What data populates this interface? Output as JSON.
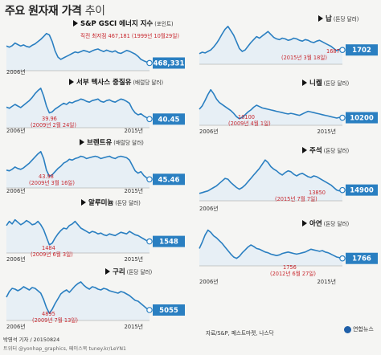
{
  "header": {
    "title": "주요 원자재 가격",
    "title_suffix": "추이"
  },
  "colors": {
    "line": "#2a7fc1",
    "fill": "#dbe9f6",
    "accent": "#c8282f",
    "value_box": "#2a7fc1"
  },
  "source": "자료/S&P, 페스트마켓, 나스닥",
  "credit": "박영석 기자 / 20150824",
  "credit2": "트위터 @yonhap_graphics, 페이스북 tuney.kr/LeYN1",
  "logo": "연합뉴스",
  "chart_data": [
    {
      "type": "line",
      "title": "S&P GSCI 에너지 지수",
      "unit": "(포인트)",
      "start_label": "2006년",
      "end_label": "",
      "current_value": "468,331",
      "annotations": [
        {
          "text": "직전 최저점  467,181 (1999년 10월29일)",
          "color": "red"
        }
      ],
      "values": [
        58,
        55,
        59,
        66,
        62,
        58,
        61,
        57,
        55,
        60,
        64,
        70,
        76,
        84,
        92,
        88,
        70,
        45,
        28,
        22,
        26,
        30,
        34,
        38,
        42,
        40,
        43,
        46,
        44,
        41,
        45,
        48,
        50,
        46,
        43,
        47,
        44,
        42,
        45,
        40,
        38,
        42,
        46,
        44,
        40,
        36,
        30,
        22,
        18,
        15,
        12
      ]
    },
    {
      "type": "line",
      "title": "서부 텍사스 중질유",
      "unit": "(배럴당 달러)",
      "start_label": "2006년",
      "end_label": "2015년",
      "current_value": "40.45",
      "annotations": [
        {
          "text": "39.96",
          "color": "red"
        },
        {
          "text": "(2009년 2월 24일)",
          "color": "red"
        }
      ],
      "values": [
        45,
        42,
        47,
        52,
        48,
        44,
        50,
        56,
        62,
        70,
        80,
        88,
        94,
        74,
        48,
        30,
        33,
        40,
        45,
        50,
        55,
        52,
        58,
        56,
        60,
        62,
        66,
        64,
        60,
        58,
        62,
        64,
        66,
        60,
        58,
        62,
        64,
        60,
        58,
        62,
        66,
        64,
        60,
        55,
        40,
        30,
        25,
        28,
        22,
        18,
        14
      ]
    },
    {
      "type": "line",
      "title": "브렌트유",
      "unit": "(배럴당 달러)",
      "start_label": "2006년",
      "end_label": "2015년",
      "current_value": "45.46",
      "annotations": [
        {
          "text": "43.98",
          "color": "red"
        },
        {
          "text": "(2009년 3월 16일)",
          "color": "red"
        }
      ],
      "values": [
        38,
        36,
        40,
        46,
        42,
        40,
        44,
        50,
        56,
        64,
        72,
        80,
        86,
        68,
        38,
        22,
        26,
        34,
        42,
        48,
        56,
        60,
        66,
        64,
        68,
        70,
        74,
        72,
        68,
        70,
        72,
        74,
        72,
        68,
        70,
        72,
        74,
        70,
        68,
        72,
        74,
        72,
        70,
        64,
        50,
        36,
        30,
        34,
        24,
        18,
        14
      ]
    },
    {
      "type": "line",
      "title": "알루미늄",
      "unit": "(톤당 달러)",
      "start_label": "2006년",
      "end_label": "2015년",
      "current_value": "1548",
      "annotations": [
        {
          "text": "1484",
          "color": "red"
        },
        {
          "text": "(2009년 6월 3일)",
          "color": "red"
        }
      ],
      "values": [
        58,
        68,
        62,
        72,
        66,
        60,
        64,
        70,
        66,
        60,
        62,
        68,
        60,
        48,
        30,
        12,
        16,
        28,
        38,
        46,
        52,
        50,
        58,
        62,
        68,
        60,
        52,
        48,
        44,
        40,
        44,
        42,
        38,
        40,
        36,
        34,
        38,
        36,
        34,
        38,
        42,
        40,
        38,
        44,
        40,
        36,
        34,
        30,
        26,
        22,
        20
      ]
    },
    {
      "type": "line",
      "title": "구리",
      "unit": "(톤당 달러)",
      "start_label": "2006년",
      "end_label": "2015년",
      "current_value": "5055",
      "annotations": [
        {
          "text": "4895",
          "color": "red"
        },
        {
          "text": "(2009년 7월 13일)",
          "color": "red"
        }
      ],
      "values": [
        50,
        64,
        72,
        70,
        66,
        70,
        76,
        72,
        68,
        74,
        72,
        66,
        60,
        44,
        24,
        10,
        20,
        34,
        46,
        58,
        64,
        68,
        62,
        70,
        78,
        84,
        88,
        80,
        74,
        70,
        76,
        74,
        70,
        68,
        72,
        70,
        66,
        64,
        62,
        60,
        64,
        62,
        58,
        54,
        48,
        42,
        40,
        34,
        28,
        22,
        18
      ]
    },
    {
      "type": "line",
      "title": "납",
      "unit": "(톤당 달러)",
      "start_label": "",
      "end_label": "",
      "current_value": "1702",
      "annotations": [
        {
          "text": "1687",
          "color": "red"
        },
        {
          "text": "(2015년 3월 18일)",
          "color": "red"
        }
      ],
      "values": [
        20,
        24,
        22,
        26,
        30,
        38,
        48,
        60,
        74,
        86,
        94,
        82,
        70,
        52,
        34,
        26,
        30,
        40,
        50,
        58,
        66,
        62,
        68,
        74,
        80,
        72,
        64,
        60,
        58,
        62,
        60,
        56,
        58,
        62,
        60,
        56,
        54,
        58,
        56,
        52,
        50,
        54,
        56,
        52,
        48,
        44,
        40,
        34,
        28,
        32,
        30
      ]
    },
    {
      "type": "line",
      "title": "니켈",
      "unit": "(톤당 달러)",
      "start_label": "2006년",
      "end_label": "2015년",
      "current_value": "10200",
      "annotations": [
        {
          "text": "10100",
          "color": "red"
        },
        {
          "text": "(2009년 4월 1일)",
          "color": "red"
        }
      ],
      "values": [
        38,
        48,
        64,
        82,
        96,
        84,
        68,
        58,
        52,
        46,
        40,
        34,
        26,
        16,
        10,
        14,
        22,
        30,
        36,
        44,
        50,
        46,
        42,
        40,
        38,
        36,
        34,
        32,
        30,
        28,
        26,
        24,
        26,
        24,
        22,
        20,
        24,
        28,
        32,
        30,
        28,
        26,
        24,
        22,
        20,
        18,
        16,
        14,
        12,
        14,
        13
      ]
    },
    {
      "type": "line",
      "title": "주석",
      "unit": "(톤당 달러)",
      "start_label": "2006년",
      "end_label": "",
      "current_value": "14900",
      "annotations": [
        {
          "text": "13850",
          "color": "red"
        },
        {
          "text": "(2015년 7월 7일)",
          "color": "red"
        }
      ],
      "values": [
        10,
        12,
        14,
        16,
        20,
        24,
        28,
        34,
        40,
        46,
        44,
        36,
        30,
        24,
        20,
        24,
        30,
        38,
        46,
        54,
        62,
        70,
        80,
        90,
        84,
        74,
        68,
        64,
        58,
        54,
        60,
        64,
        62,
        56,
        52,
        56,
        58,
        54,
        50,
        48,
        52,
        50,
        46,
        42,
        38,
        34,
        30,
        24,
        18,
        16,
        18
      ]
    },
    {
      "type": "line",
      "title": "아연",
      "unit": "(톤당 달러)",
      "start_label": "2006년",
      "end_label": "2015년",
      "current_value": "1766",
      "annotations": [
        {
          "text": "1756",
          "color": "red"
        },
        {
          "text": "(2012년 6월 27일)",
          "color": "red"
        }
      ],
      "values": [
        40,
        58,
        78,
        92,
        86,
        76,
        70,
        62,
        54,
        44,
        34,
        24,
        16,
        12,
        18,
        28,
        36,
        44,
        50,
        46,
        40,
        38,
        34,
        30,
        28,
        24,
        22,
        20,
        22,
        26,
        28,
        30,
        28,
        26,
        24,
        26,
        28,
        30,
        34,
        38,
        36,
        34,
        32,
        34,
        30,
        28,
        24,
        20,
        16,
        14,
        12
      ]
    }
  ]
}
